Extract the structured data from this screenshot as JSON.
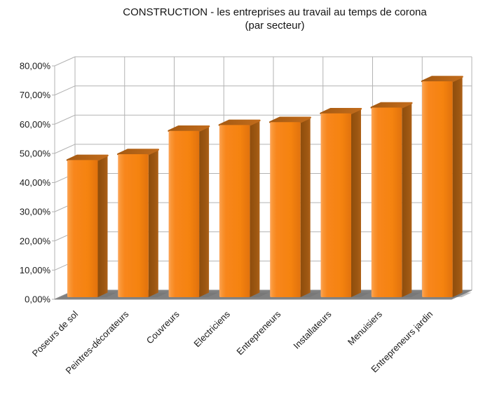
{
  "title": "CONSTRUCTION - les entreprises au travail au temps de corona",
  "subtitle": "(par secteur)",
  "chart_data": {
    "type": "bar",
    "style": "3d-box",
    "title": "CONSTRUCTION - les entreprises au travail au temps de corona",
    "subtitle": "(par secteur)",
    "categories": [
      "Poseurs de sol",
      "Peintres-décorateurs",
      "Couvreurs",
      "Electriciens",
      "Entrepreneurs",
      "Installateurs",
      "Menuisiers",
      "Entrepreneurs jardin"
    ],
    "values": [
      47,
      49,
      57,
      59,
      60,
      63,
      65,
      74
    ],
    "unit": "%",
    "xlabel": "",
    "ylabel": "",
    "ylim": [
      0,
      80
    ],
    "ytick_step": 10,
    "ytick_labels": [
      "0,00%",
      "10,00%",
      "20,00%",
      "30,00%",
      "40,00%",
      "50,00%",
      "60,00%",
      "70,00%",
      "80,00%"
    ],
    "grid": true,
    "legend": "none",
    "colors": {
      "bar_front": "#f8861c",
      "bar_front_highlight": "#fda559",
      "bar_front_shade": "#e1720d",
      "bar_side": "#9d5712",
      "bar_top": "#b4641a",
      "floor": "#808080",
      "gridline": "#b3b3b3",
      "axis_text": "#1a1a1a",
      "background": "#ffffff"
    }
  }
}
